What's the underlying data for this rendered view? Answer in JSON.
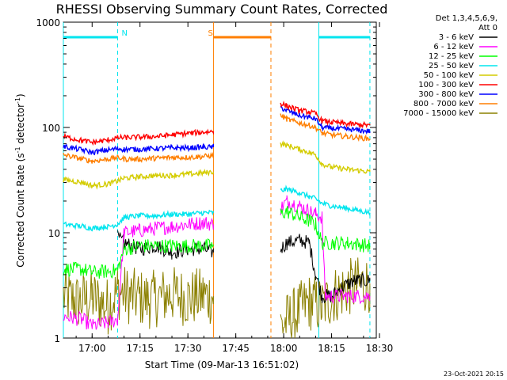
{
  "chart_data": {
    "type": "line",
    "title": "RHESSI Observing Summary Count Rates, Corrected",
    "xlabel": "Start Time (09-Mar-13 16:51:02)",
    "ylabel": "Corrected Count Rate (s⁻¹ detector⁻¹)",
    "ylabel_parts": {
      "pre": "Corrected Count Rate (s",
      "sup1": "-1",
      "mid": " detector",
      "sup2": "-1",
      "post": ")"
    },
    "y_scale": "log",
    "ylim": [
      1,
      1000
    ],
    "xlim": [
      "16:51",
      "18:29"
    ],
    "x_ticks": [
      "17:00",
      "17:15",
      "17:30",
      "17:45",
      "18:00",
      "18:15",
      "18:30"
    ],
    "y_ticks": [
      "1",
      "10",
      "100",
      "1000"
    ],
    "legend_header": [
      "Det 1,3,4,5,6,9,",
      "Att 0"
    ],
    "legend_position": "right",
    "date_stamp": "23-Oct-2021 20:15",
    "markers": [
      {
        "label": "N",
        "kind": "night",
        "start": "16:51",
        "end": "17:08",
        "color": "#00e5ee"
      },
      {
        "label": "S",
        "kind": "saa",
        "start": "17:38",
        "end": "17:56",
        "color": "#ff7f00"
      },
      {
        "label": "",
        "kind": "night",
        "start": "18:11",
        "end": "18:27",
        "color": "#00e5ee"
      }
    ],
    "gap": {
      "start": "17:38",
      "end": "17:59"
    },
    "series": [
      {
        "name": "3 - 6 keV",
        "color": "#000000",
        "segments": [
          {
            "x": [
              "17:08",
              "17:10",
              "17:15",
              "17:20",
              "17:25",
              "17:30",
              "17:35",
              "17:38"
            ],
            "y": [
              9,
              8,
              7,
              7.5,
              6.5,
              7,
              7,
              6.5
            ]
          },
          {
            "x": [
              "17:59",
              "18:01",
              "18:05",
              "18:08",
              "18:10",
              "18:12",
              "18:15",
              "18:18",
              "18:22",
              "18:27"
            ],
            "y": [
              7,
              8,
              8.5,
              8,
              4,
              2.5,
              2.5,
              3,
              3.5,
              3.5
            ]
          }
        ]
      },
      {
        "name": "6 - 12 keV",
        "color": "#ff00ff",
        "segments": [
          {
            "x": [
              "16:51",
              "16:57",
              "17:00",
              "17:05",
              "17:08",
              "17:10",
              "17:15",
              "17:20",
              "17:25",
              "17:30",
              "17:35",
              "17:38"
            ],
            "y": [
              1.6,
              1.5,
              1.3,
              1.4,
              1.5,
              10,
              10.5,
              11,
              11.5,
              12,
              12.5,
              12
            ]
          },
          {
            "x": [
              "17:59",
              "18:01",
              "18:05",
              "18:08",
              "18:10",
              "18:12",
              "18:13",
              "18:15",
              "18:20",
              "18:27"
            ],
            "y": [
              17,
              20,
              18,
              16,
              15,
              14,
              2.5,
              2.5,
              2.5,
              2.5
            ]
          }
        ]
      },
      {
        "name": "12 - 25 keV",
        "color": "#00ff00",
        "segments": [
          {
            "x": [
              "16:51",
              "16:57",
              "17:00",
              "17:05",
              "17:08",
              "17:10",
              "17:15",
              "17:20",
              "17:25",
              "17:30",
              "17:35",
              "17:38"
            ],
            "y": [
              4.5,
              4.5,
              4.2,
              4.3,
              4.4,
              7,
              7.5,
              7.5,
              7.5,
              7.5,
              7.5,
              7.5
            ]
          },
          {
            "x": [
              "17:59",
              "18:01",
              "18:05",
              "18:08",
              "18:10",
              "18:12",
              "18:15",
              "18:20",
              "18:27"
            ],
            "y": [
              15,
              16,
              14,
              13,
              12,
              8,
              8,
              8,
              7.5
            ]
          }
        ]
      },
      {
        "name": "25 - 50 keV",
        "color": "#00e5ee",
        "segments": [
          {
            "x": [
              "16:51",
              "16:57",
              "17:00",
              "17:05",
              "17:08",
              "17:10",
              "17:15",
              "17:20",
              "17:25",
              "17:30",
              "17:35",
              "17:38"
            ],
            "y": [
              12,
              11.5,
              11,
              11.5,
              12,
              14,
              14.5,
              14.5,
              15,
              15,
              15.5,
              15.5
            ]
          },
          {
            "x": [
              "17:59",
              "18:01",
              "18:05",
              "18:08",
              "18:10",
              "18:12",
              "18:15",
              "18:20",
              "18:27"
            ],
            "y": [
              25,
              26,
              24,
              22,
              21,
              19,
              18,
              17,
              15.5
            ]
          }
        ]
      },
      {
        "name": "50 - 100 keV",
        "color": "#d4cc00",
        "segments": [
          {
            "x": [
              "16:51",
              "16:57",
              "17:00",
              "17:05",
              "17:08",
              "17:10",
              "17:15",
              "17:20",
              "17:25",
              "17:30",
              "17:35",
              "17:38"
            ],
            "y": [
              32,
              30,
              28,
              29,
              31,
              33,
              34,
              35,
              35,
              36,
              37,
              38
            ]
          },
          {
            "x": [
              "17:59",
              "18:01",
              "18:05",
              "18:08",
              "18:10",
              "18:12",
              "18:15",
              "18:20",
              "18:27"
            ],
            "y": [
              70,
              68,
              62,
              58,
              55,
              45,
              42,
              40,
              38
            ]
          }
        ]
      },
      {
        "name": "100 - 300 keV",
        "color": "#ff0000",
        "segments": [
          {
            "x": [
              "16:51",
              "16:57",
              "17:00",
              "17:05",
              "17:08",
              "17:10",
              "17:15",
              "17:20",
              "17:25",
              "17:30",
              "17:35",
              "17:38"
            ],
            "y": [
              82,
              75,
              72,
              76,
              80,
              80,
              81,
              82,
              85,
              88,
              90,
              92
            ]
          },
          {
            "x": [
              "17:59",
              "18:01",
              "18:05",
              "18:08",
              "18:10",
              "18:12",
              "18:15",
              "18:20",
              "18:27"
            ],
            "y": [
              170,
              160,
              145,
              140,
              135,
              115,
              112,
              108,
              105
            ]
          }
        ]
      },
      {
        "name": "300 - 800 keV",
        "color": "#0000ff",
        "segments": [
          {
            "x": [
              "16:51",
              "16:57",
              "17:00",
              "17:05",
              "17:08",
              "17:10",
              "17:15",
              "17:20",
              "17:25",
              "17:30",
              "17:35",
              "17:38"
            ],
            "y": [
              66,
              61,
              58,
              61,
              63,
              62,
              62,
              63,
              64,
              64,
              65,
              65
            ]
          },
          {
            "x": [
              "17:59",
              "18:01",
              "18:05",
              "18:08",
              "18:10",
              "18:12",
              "18:15",
              "18:20",
              "18:27"
            ],
            "y": [
              155,
              145,
              130,
              125,
              120,
              100,
              98,
              96,
              92
            ]
          }
        ]
      },
      {
        "name": "800 - 7000 keV",
        "color": "#ff7f00",
        "segments": [
          {
            "x": [
              "16:51",
              "16:57",
              "17:00",
              "17:05",
              "17:08",
              "17:10",
              "17:15",
              "17:20",
              "17:25",
              "17:30",
              "17:35",
              "17:38"
            ],
            "y": [
              55,
              50,
              48,
              50,
              52,
              50,
              50,
              51,
              52,
              52,
              53,
              54
            ]
          },
          {
            "x": [
              "17:59",
              "18:01",
              "18:05",
              "18:08",
              "18:10",
              "18:12",
              "18:15",
              "18:20",
              "18:27"
            ],
            "y": [
              130,
              120,
              110,
              105,
              100,
              88,
              85,
              82,
              78
            ]
          }
        ]
      },
      {
        "name": "7000 - 15000 keV",
        "color": "#8b8000",
        "segments": [
          {
            "x": [
              "16:51",
              "16:55",
              "17:00",
              "17:05",
              "17:08",
              "17:12",
              "17:18",
              "17:25",
              "17:30",
              "17:35",
              "17:38"
            ],
            "y": [
              2.5,
              2.2,
              2.4,
              2,
              2.8,
              2.5,
              2.3,
              2.6,
              2.4,
              2.5,
              2.5
            ]
          },
          {
            "x": [
              "17:59",
              "18:03",
              "18:08",
              "18:12",
              "18:16",
              "18:20",
              "18:24",
              "18:27"
            ],
            "y": [
              1.3,
              1.6,
              2.2,
              2,
              2.6,
              3,
              3.2,
              3.3
            ]
          }
        ]
      }
    ]
  }
}
